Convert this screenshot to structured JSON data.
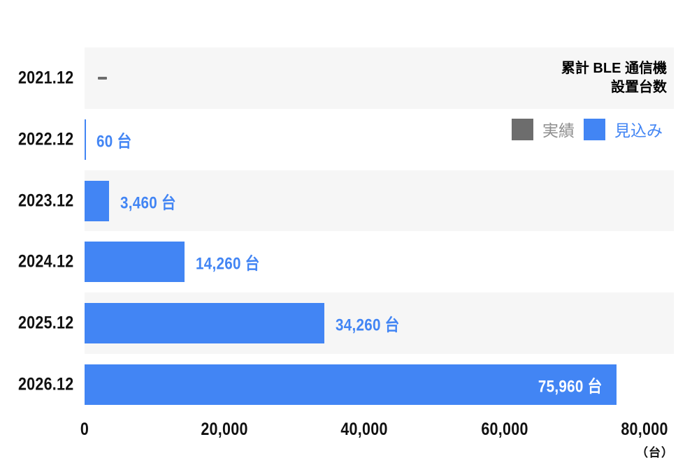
{
  "title": {
    "line1": "累計 BLE 通信機",
    "line2": "設置台数"
  },
  "legend": {
    "items": [
      {
        "name": "actual",
        "label": "実績",
        "swatch_color": "#6D6D6D",
        "text_color": "#8E8E8E"
      },
      {
        "name": "forecast",
        "label": "見込み",
        "swatch_color": "#4285F4",
        "text_color": "#4285F4"
      }
    ]
  },
  "axis": {
    "unit_label": "（台）"
  },
  "colors": {
    "bar": "#4285F4",
    "value_text": "#4285F4",
    "inside_value_text": "#FFFFFF",
    "row_band": "#F6F6F6",
    "axis_text": "#111111",
    "category_text": "#111111",
    "title_text": "#000000",
    "no_data_dash": "#6D6D6D"
  },
  "chart_data": {
    "type": "bar",
    "orientation": "horizontal",
    "title": "累計 BLE 通信機 設置台数",
    "categories": [
      "2021.12",
      "2022.12",
      "2023.12",
      "2024.12",
      "2025.12",
      "2026.12"
    ],
    "series": [
      {
        "name": "見込み",
        "values": [
          null,
          60,
          3460,
          14260,
          34260,
          75960
        ]
      }
    ],
    "value_labels": [
      "–",
      "60 台",
      "3,460 台",
      "14,260 台",
      "34,260 台",
      "75,960 台"
    ],
    "label_placement": [
      "dash",
      "outside",
      "outside",
      "outside",
      "outside",
      "inside"
    ],
    "xlim": [
      0,
      84200
    ],
    "xticks": [
      0,
      20000,
      40000,
      60000,
      80000
    ],
    "xtick_labels": [
      "0",
      "20,000",
      "40,000",
      "60,000",
      "80,000"
    ],
    "xlabel": "（台）",
    "grid": false,
    "legend_entries": [
      "実績",
      "見込み"
    ],
    "legend_position": "in-plot top-right",
    "note": "2021.12 shows a gray dash (no data); all plotted bars use the forecast (見込み) blue color; 2026.12 value label is white inside the bar"
  }
}
